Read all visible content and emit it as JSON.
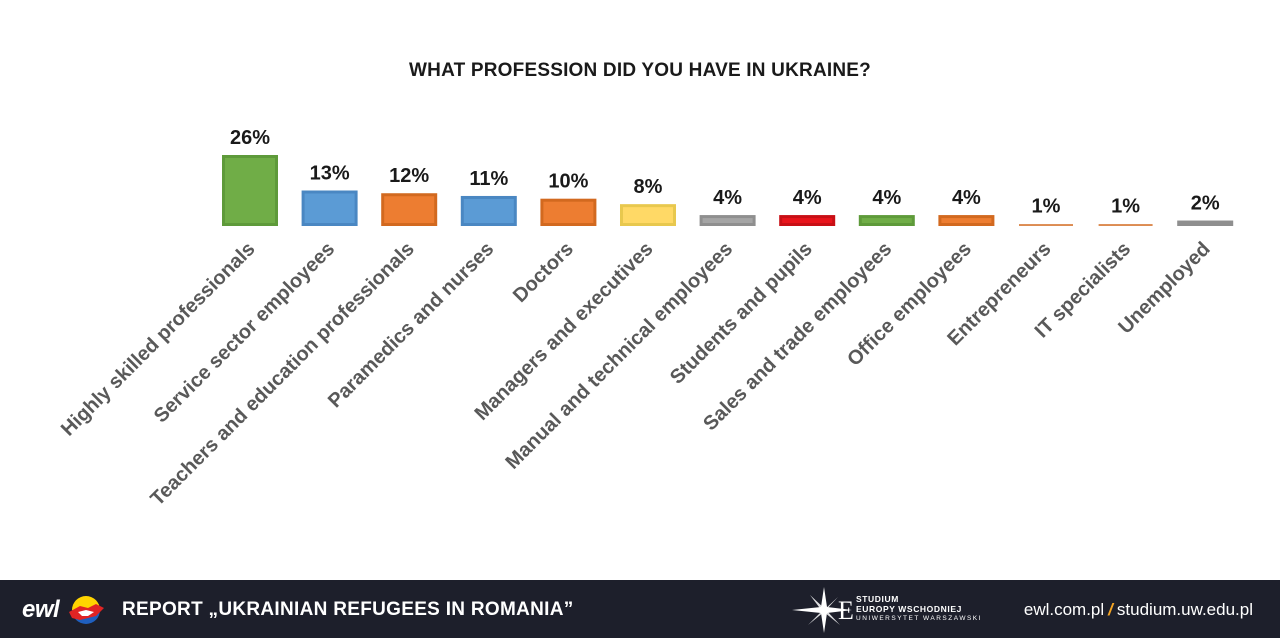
{
  "chart_data": {
    "type": "bar",
    "title": "WHAT PROFESSION DID YOU HAVE IN UKRAINE?",
    "categories": [
      "Highly skilled professionals",
      "Service sector employees",
      "Teachers and education professionals",
      "Paramedics and nurses",
      "Doctors",
      "Managers and executives",
      "Manual and technical employees",
      "Students and pupils",
      "Sales and trade employees",
      "Office employees",
      "Entrepreneurs",
      "IT specialists",
      "Unemployed"
    ],
    "values": [
      26,
      13,
      12,
      11,
      10,
      8,
      4,
      4,
      4,
      4,
      1,
      1,
      2
    ],
    "value_labels": [
      "26%",
      "13%",
      "12%",
      "11%",
      "10%",
      "8%",
      "4%",
      "4%",
      "4%",
      "4%",
      "1%",
      "1%",
      "2%"
    ],
    "bar_colors": [
      "#70ad47",
      "#5b9bd5",
      "#ed7d31",
      "#5b9bd5",
      "#ed7d31",
      "#ffd966",
      "#a5a5a5",
      "#e8141b",
      "#70ad47",
      "#ed7d31",
      "#ed7d31",
      "#ed7d31",
      "#a5a5a5"
    ],
    "bar_border_colors": [
      "#5e9a3a",
      "#4a87c2",
      "#d2691f",
      "#4a87c2",
      "#d2691f",
      "#e8c84e",
      "#8f8f8f",
      "#c80f15",
      "#5e9a3a",
      "#d2691f",
      "#d2691f",
      "#d2691f",
      "#8f8f8f"
    ],
    "ylim": [
      0,
      26
    ],
    "grid": false,
    "legend": "none"
  },
  "footer": {
    "logo_text": "ewl",
    "report_title": "REPORT „UKRAINIAN REFUGEES IN ROMANIA”",
    "studium_line1": "STUDIUM",
    "studium_line2": "EUROPY WSCHODNIEJ",
    "studium_line3": "UNIWERSYTET WARSZAWSKI",
    "site1": "ewl.com.pl",
    "separator": "/",
    "site2": "studium.uw.edu.pl"
  }
}
